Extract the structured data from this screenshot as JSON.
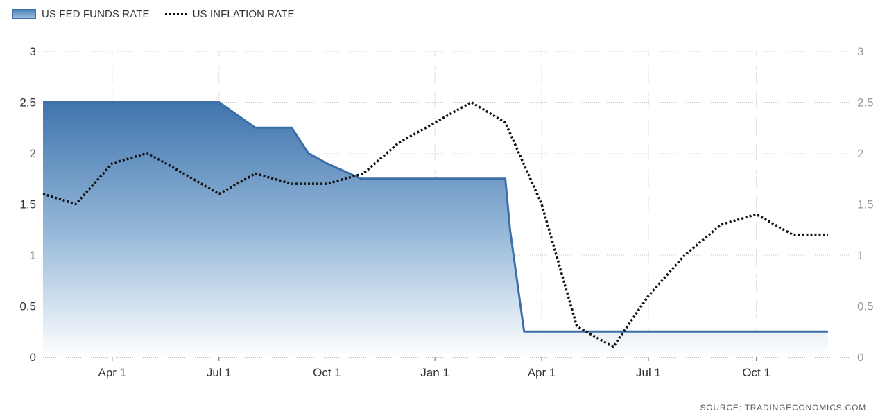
{
  "chart_data": {
    "type": "area",
    "series": [
      {
        "name": "US FED FUNDS RATE",
        "kind": "area",
        "color": "#3d6fa6",
        "x": [
          "2019-02-01",
          "2019-03-01",
          "2019-04-01",
          "2019-05-01",
          "2019-06-01",
          "2019-07-01",
          "2019-08-01",
          "2019-09-01",
          "2019-09-15",
          "2019-10-01",
          "2019-10-30",
          "2019-11-01",
          "2019-12-01",
          "2020-01-01",
          "2020-02-01",
          "2020-03-01",
          "2020-03-05",
          "2020-03-17",
          "2020-04-01",
          "2020-05-01",
          "2020-06-01",
          "2020-07-01",
          "2020-08-01",
          "2020-09-01",
          "2020-10-01",
          "2020-11-01",
          "2020-12-01"
        ],
        "values": [
          2.5,
          2.5,
          2.5,
          2.5,
          2.5,
          2.5,
          2.25,
          2.25,
          2.0,
          1.9,
          1.75,
          1.75,
          1.75,
          1.75,
          1.75,
          1.75,
          1.25,
          0.25,
          0.25,
          0.25,
          0.25,
          0.25,
          0.25,
          0.25,
          0.25,
          0.25,
          0.25
        ]
      },
      {
        "name": "US INFLATION RATE",
        "kind": "line",
        "color": "#111111",
        "x": [
          "2019-02-01",
          "2019-03-01",
          "2019-04-01",
          "2019-05-01",
          "2019-06-01",
          "2019-07-01",
          "2019-08-01",
          "2019-09-01",
          "2019-10-01",
          "2019-11-01",
          "2019-12-01",
          "2020-01-01",
          "2020-02-01",
          "2020-03-01",
          "2020-04-01",
          "2020-05-01",
          "2020-06-01",
          "2020-07-01",
          "2020-08-01",
          "2020-09-01",
          "2020-10-01",
          "2020-11-01",
          "2020-12-01"
        ],
        "values": [
          1.6,
          1.5,
          1.9,
          2.0,
          1.8,
          1.6,
          1.8,
          1.7,
          1.7,
          1.8,
          2.1,
          2.3,
          2.5,
          2.3,
          1.5,
          0.3,
          0.1,
          0.6,
          1.0,
          1.3,
          1.4,
          1.2,
          1.2
        ]
      }
    ],
    "x_ticks": [
      "Apr 1",
      "Jul 1",
      "Oct 1",
      "Jan 1",
      "Apr 1",
      "Jul 1",
      "Oct 1"
    ],
    "x_tick_dates": [
      "2019-04-01",
      "2019-07-01",
      "2019-10-01",
      "2020-01-01",
      "2020-04-01",
      "2020-07-01",
      "2020-10-01"
    ],
    "x_range": [
      "2019-02-01",
      "2020-12-20"
    ],
    "y_ticks": [
      "0",
      "0.5",
      "1",
      "1.5",
      "2",
      "2.5",
      "3"
    ],
    "ylim": [
      0,
      3
    ],
    "grid": true,
    "legend": "top-left",
    "source": "SOURCE:  TRADINGECONOMICS.COM"
  }
}
